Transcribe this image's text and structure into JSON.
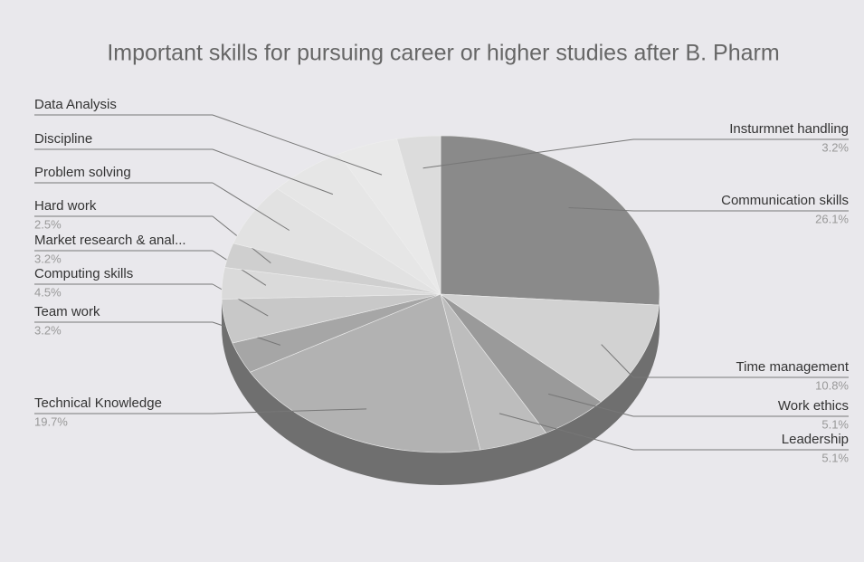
{
  "chart_data": {
    "type": "pie",
    "title": "Important skills for pursuing career or higher studies after B. Pharm",
    "categories": [
      "Communication skills",
      "Time management",
      "Work ethics",
      "Leadership",
      "Technical Knowledge",
      "Team work",
      "Computing skills",
      "Market research & anal...",
      "Hard work",
      "Problem solving",
      "Discipline",
      "Data Analysis",
      "Insturmnet handling"
    ],
    "values": [
      26.1,
      10.8,
      5.1,
      5.1,
      19.7,
      3.2,
      4.5,
      3.2,
      2.5,
      6.4,
      5.7,
      4.5,
      3.2
    ],
    "value_labels": [
      "26.1%",
      "10.8%",
      "5.1%",
      "5.1%",
      "19.7%",
      "3.2%",
      "4.5%",
      "3.2%",
      "2.5%",
      null,
      null,
      null,
      "3.2%"
    ],
    "colors": [
      "#8a8a8a",
      "#d2d2d2",
      "#9a9a9a",
      "#bdbdbd",
      "#b2b2b2",
      "#a6a6a6",
      "#c8c8c8",
      "#dadada",
      "#cfcfcf",
      "#e2e2e2",
      "#e6e6e6",
      "#e9e9e9",
      "#dcdcdc"
    ]
  }
}
